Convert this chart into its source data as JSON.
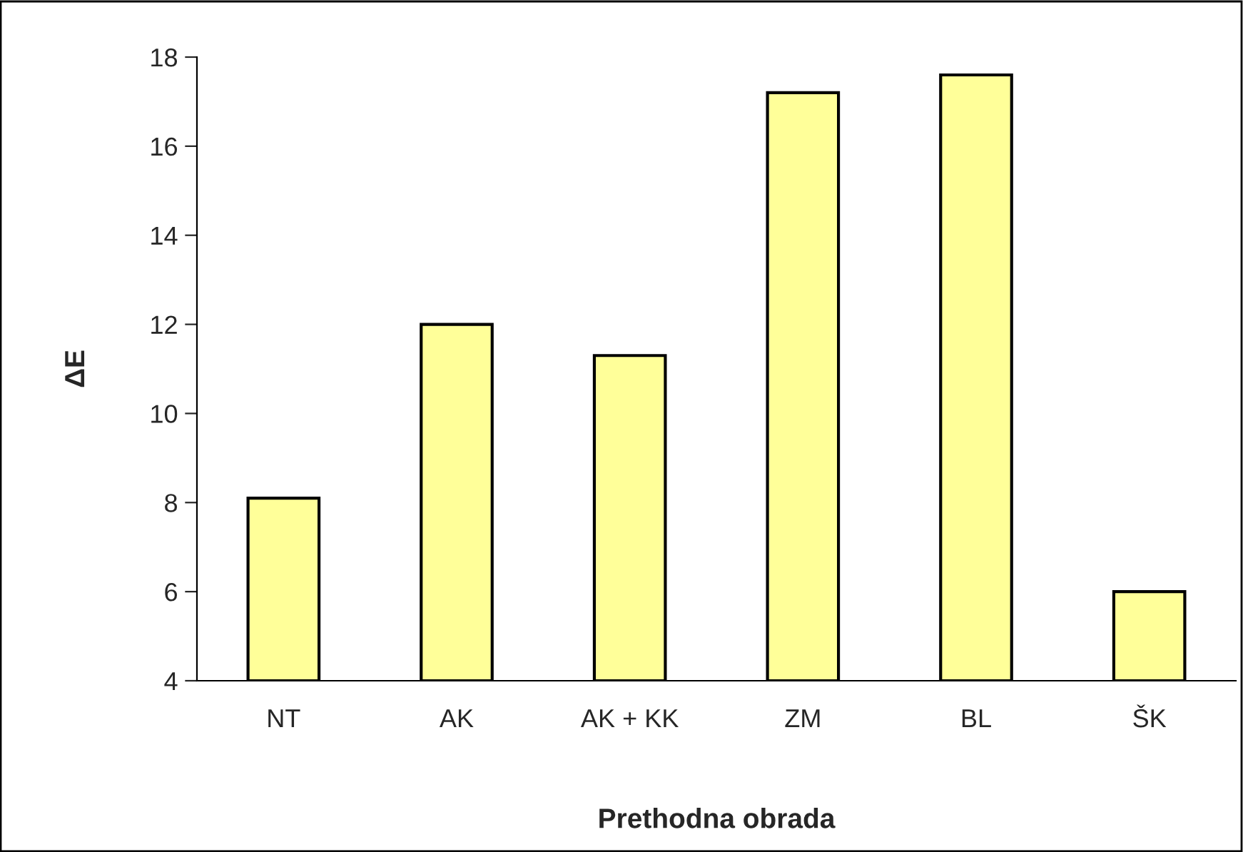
{
  "chart_data": {
    "type": "bar",
    "xlabel": "Prethodna obrada",
    "ylabel": "ΔE",
    "categories": [
      "NT",
      "AK",
      "AK + KK",
      "ZM",
      "BL",
      "ŠK"
    ],
    "values": [
      8.1,
      12.0,
      11.3,
      17.2,
      17.6,
      6.0
    ],
    "color": "#ffff99",
    "ylim": [
      4,
      18
    ],
    "yticks": [
      4,
      6,
      8,
      10,
      12,
      14,
      16,
      18
    ],
    "grid": false,
    "legend": false
  }
}
